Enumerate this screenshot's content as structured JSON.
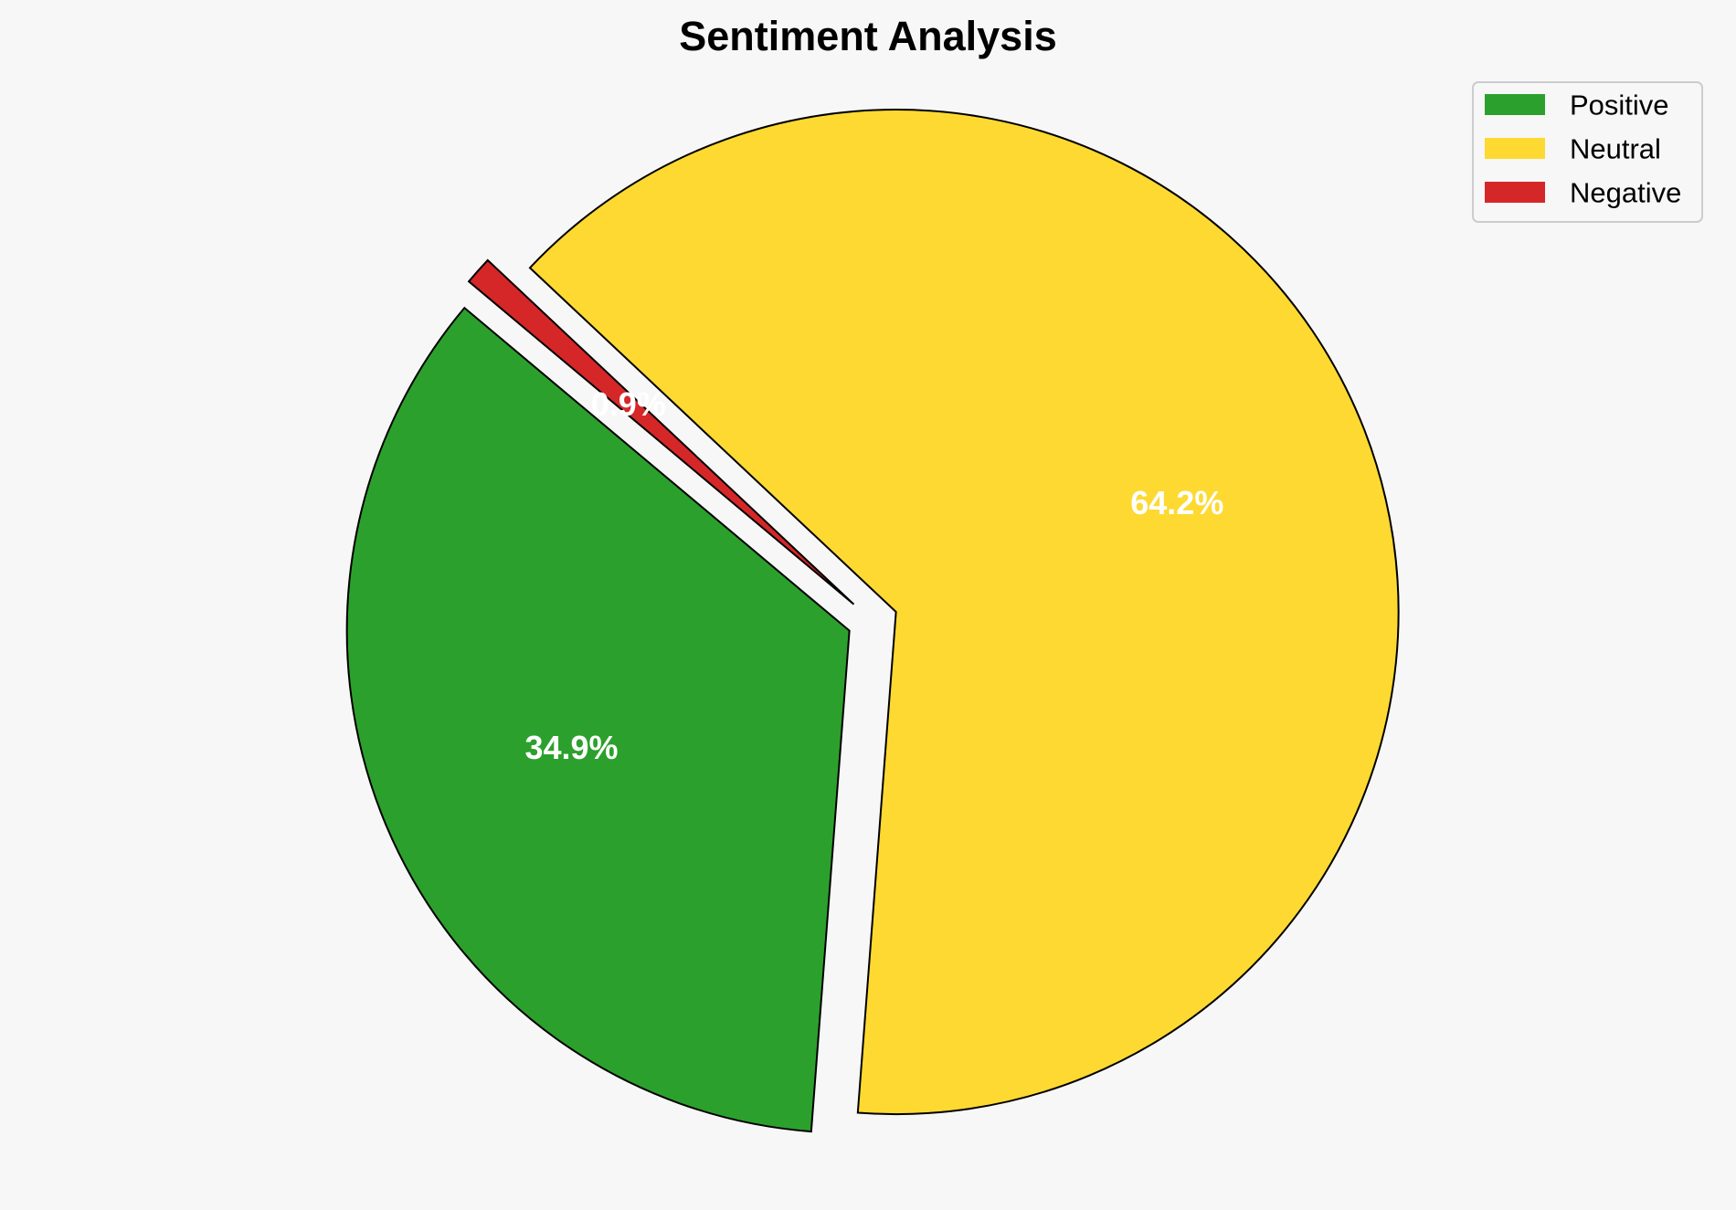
{
  "chart_data": {
    "type": "pie",
    "title": "Sentiment Analysis",
    "slices": [
      {
        "name": "Positive",
        "value": 34.9,
        "label": "34.9%",
        "color": "#2ca02c",
        "exploded": true
      },
      {
        "name": "Neutral",
        "value": 64.2,
        "label": "64.2%",
        "color": "#fdd932",
        "exploded": true
      },
      {
        "name": "Negative",
        "value": 0.9,
        "label": "0.9%",
        "color": "#d62728",
        "exploded": true
      }
    ],
    "start_angle_deg": 140,
    "direction": "counterclockwise",
    "edge_color": "#000000",
    "legend": {
      "position": "top-right",
      "entries": [
        "Positive",
        "Neutral",
        "Negative"
      ]
    }
  }
}
